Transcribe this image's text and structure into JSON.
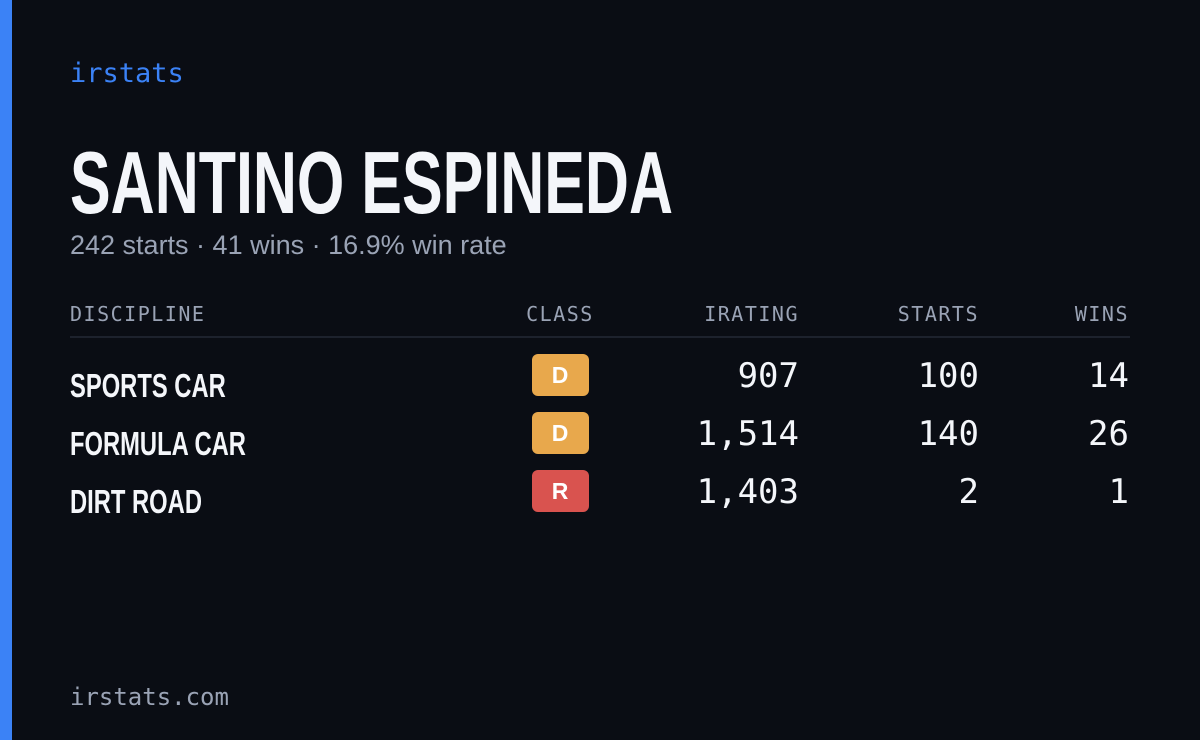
{
  "brand": "irstats",
  "header": {
    "name": "SANTINO ESPINEDA",
    "summary": "242 starts · 41 wins · 16.9% win rate"
  },
  "table": {
    "columns": [
      "DISCIPLINE",
      "CLASS",
      "IRATING",
      "STARTS",
      "WINS"
    ],
    "rows": [
      {
        "discipline": "SPORTS CAR",
        "class": "D",
        "class_color": "#e8a84c",
        "irating": "907",
        "starts": "100",
        "wins": "14"
      },
      {
        "discipline": "FORMULA CAR",
        "class": "D",
        "class_color": "#e8a84c",
        "irating": "1,514",
        "starts": "140",
        "wins": "26"
      },
      {
        "discipline": "DIRT ROAD",
        "class": "R",
        "class_color": "#d9534f",
        "irating": "1,403",
        "starts": "2",
        "wins": "1"
      }
    ]
  },
  "footer": "irstats.com"
}
